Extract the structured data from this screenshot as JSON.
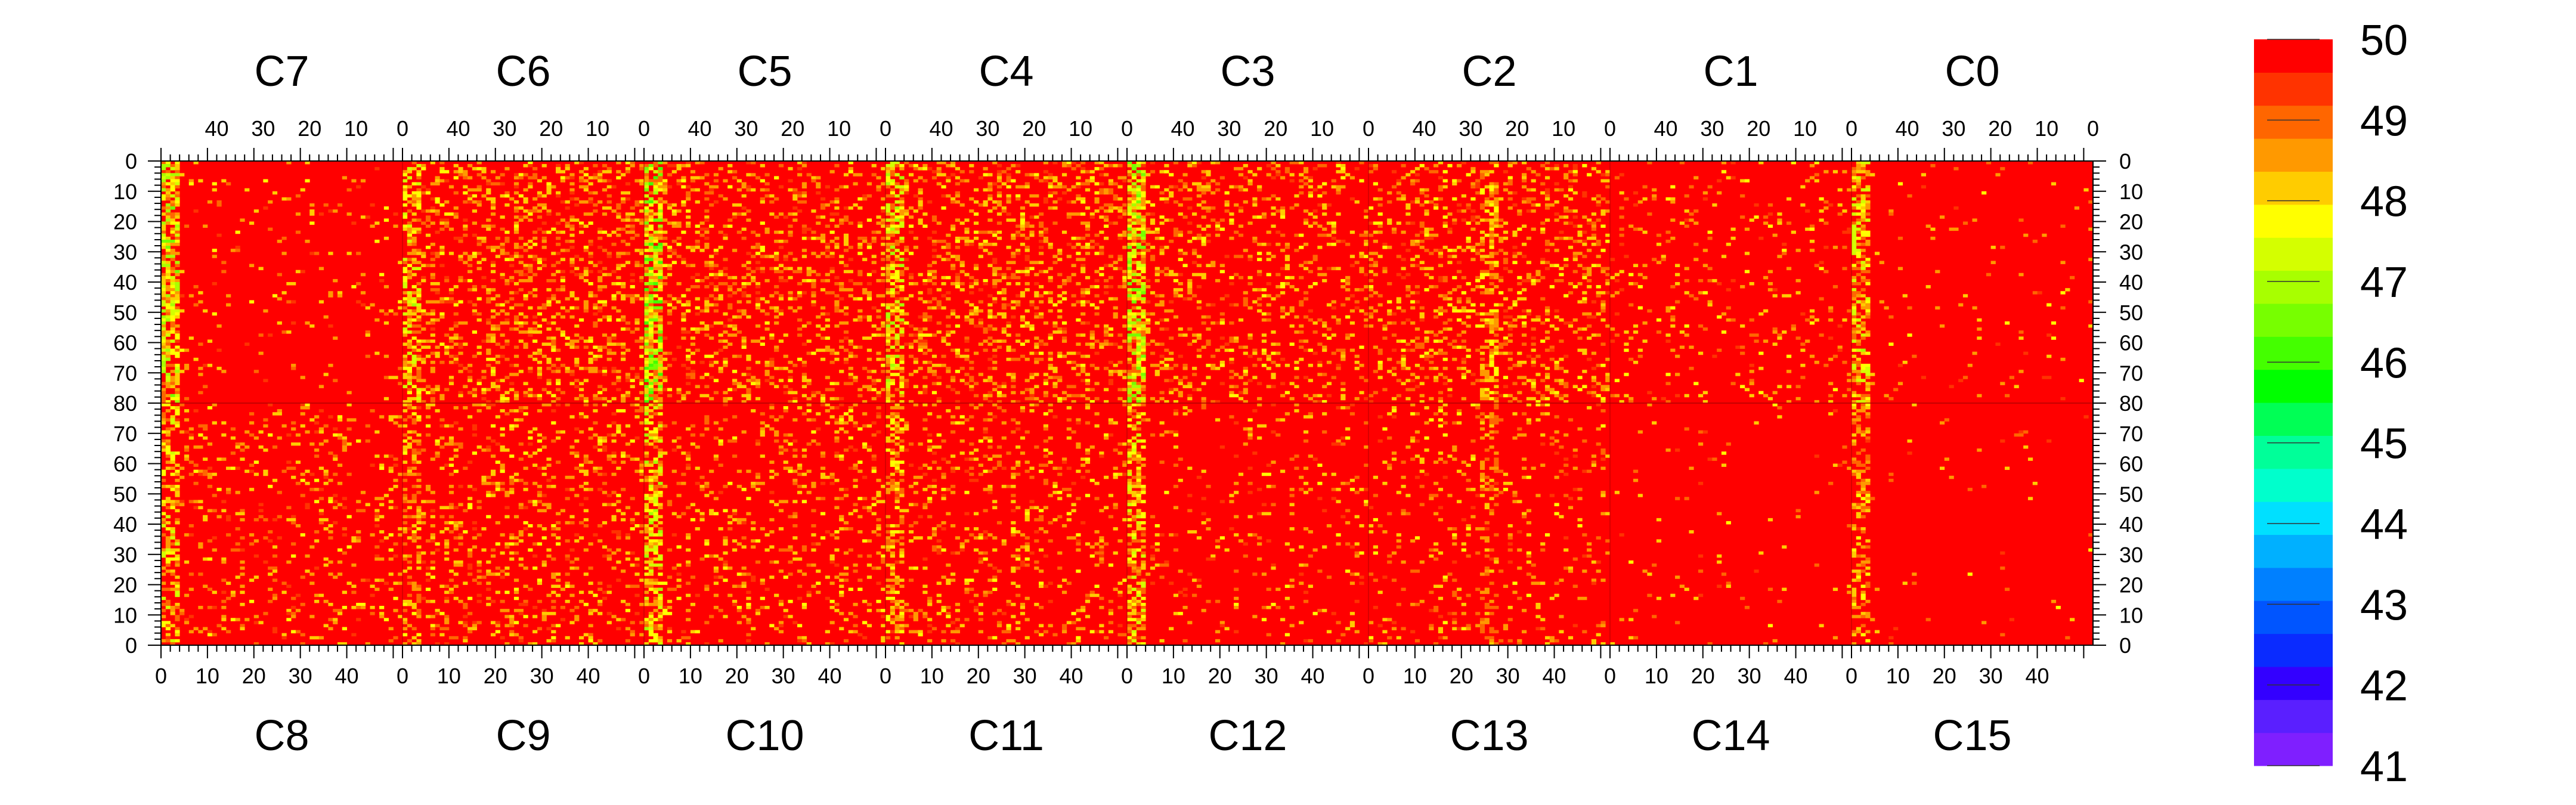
{
  "chart_data": {
    "type": "heatmap",
    "title": "",
    "xlabel": "",
    "ylabel": "",
    "top_chips": [
      "C7",
      "C6",
      "C5",
      "C4",
      "C3",
      "C2",
      "C1",
      "C0"
    ],
    "bottom_chips": [
      "C8",
      "C9",
      "C10",
      "C11",
      "C12",
      "C13",
      "C14",
      "C15"
    ],
    "columns_per_chip": 52,
    "rows_per_half": 80,
    "x_tick_values": [
      0,
      10,
      20,
      30,
      40
    ],
    "y_tick_values": [
      0,
      10,
      20,
      30,
      40,
      50,
      60,
      70,
      80
    ],
    "top_axis_direction": "descending",
    "bottom_axis_direction": "ascending",
    "z_range": [
      41,
      50
    ],
    "colorbar_labels": [
      50,
      49,
      48,
      47,
      46,
      45,
      44,
      43,
      42,
      41
    ],
    "colorbar_colors": [
      "#7f1fff",
      "#5a1fff",
      "#3300ff",
      "#0a2bff",
      "#0055ff",
      "#0080ff",
      "#00b0ff",
      "#00e0ff",
      "#00ffcc",
      "#00ff99",
      "#00ff55",
      "#00ff00",
      "#44ff00",
      "#77ff00",
      "#a8ff00",
      "#d4ff00",
      "#ffff00",
      "#ffcc00",
      "#ff9900",
      "#ff6600",
      "#ff3300",
      "#ff0000"
    ],
    "dominant_value": 50,
    "weak_value_chips": [
      "C9",
      "C11",
      "C12",
      "C0"
    ],
    "weak_column_ranges": [
      {
        "chip_index": 0,
        "side": "right",
        "range": [
          48,
          51
        ],
        "intensity": 1.0
      },
      {
        "chip_index": 1,
        "side": "right",
        "range": [
          48,
          51
        ],
        "intensity": 0.8
      },
      {
        "chip_index": 2,
        "side": "right",
        "range": [
          48,
          51
        ],
        "intensity": 1.2
      },
      {
        "chip_index": 3,
        "side": "right",
        "range": [
          48,
          51
        ],
        "intensity": 0.9
      },
      {
        "chip_index": 4,
        "side": "right",
        "range": [
          48,
          51
        ],
        "intensity": 1.1
      },
      {
        "chip_index": 5,
        "side": "right",
        "range": [
          24,
          27
        ],
        "intensity": 0.6
      },
      {
        "chip_index": 7,
        "side": "left",
        "range": [
          0,
          3
        ],
        "intensity": 0.8
      }
    ],
    "noise_density_top": [
      0.05,
      0.25,
      0.22,
      0.25,
      0.18,
      0.22,
      0.08,
      0.03
    ],
    "noise_density_bottom": [
      0.12,
      0.18,
      0.15,
      0.14,
      0.08,
      0.1,
      0.02,
      0.01
    ]
  }
}
